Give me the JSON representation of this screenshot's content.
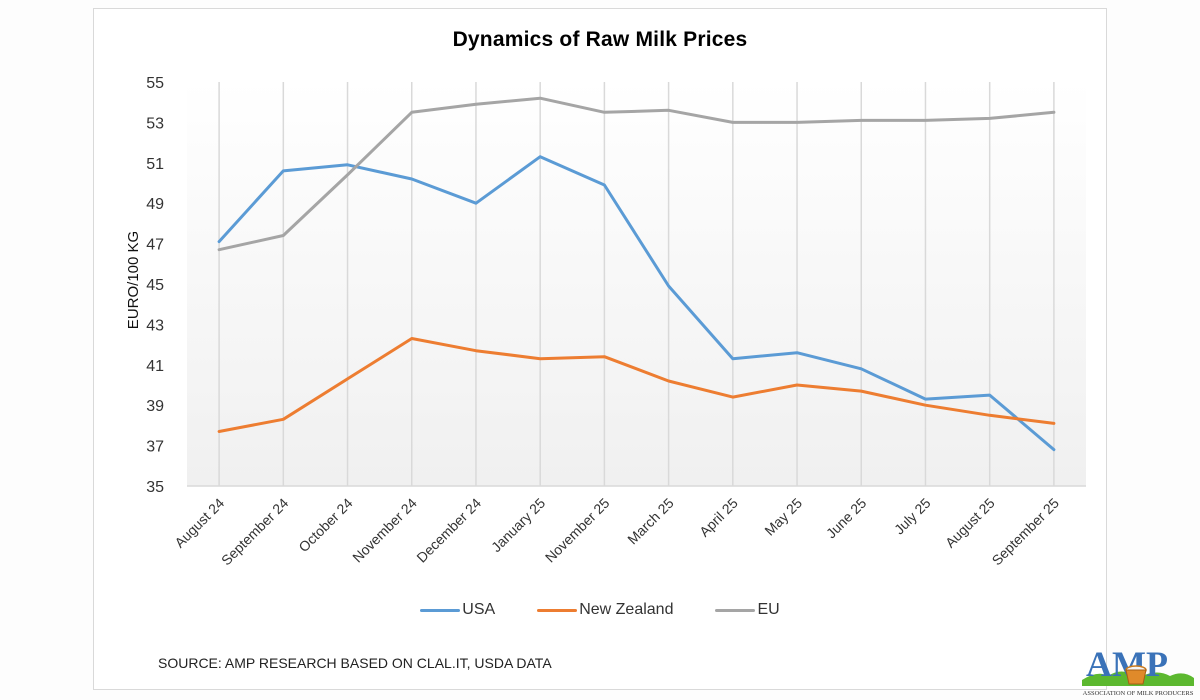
{
  "chart_data": {
    "type": "line",
    "title": "Dynamics of Raw Milk Prices",
    "xlabel": "",
    "ylabel": "EURO/100 KG",
    "ylim": [
      35,
      55
    ],
    "yticks": [
      35,
      37,
      39,
      41,
      43,
      45,
      47,
      49,
      51,
      53,
      55
    ],
    "grid": "vertical",
    "legend_position": "bottom",
    "categories": [
      "August 24",
      "September 24",
      "October 24",
      "November 24",
      "December 24",
      "January 25",
      "November 25",
      "March 25",
      "April 25",
      "May 25",
      "June 25",
      "July 25",
      "August 25",
      "September 25"
    ],
    "series": [
      {
        "name": "USA",
        "color": "#5b9bd5",
        "values": [
          47.1,
          50.6,
          50.9,
          50.2,
          49.0,
          51.3,
          49.9,
          44.9,
          41.3,
          41.6,
          40.8,
          39.3,
          39.5,
          36.8
        ]
      },
      {
        "name": "New Zealand",
        "color": "#ed7d31",
        "values": [
          37.7,
          38.3,
          40.3,
          42.3,
          41.7,
          41.3,
          41.4,
          40.2,
          39.4,
          40.0,
          39.7,
          39.0,
          38.5,
          38.1
        ]
      },
      {
        "name": "EU",
        "color": "#a5a5a5",
        "values": [
          46.7,
          47.4,
          50.4,
          53.5,
          53.9,
          54.2,
          53.5,
          53.6,
          53.0,
          53.0,
          53.1,
          53.1,
          53.2,
          53.5
        ]
      }
    ]
  },
  "footer": {
    "source": "SOURCE: AMP RESEARCH  BASED ON CLAL.IT, USDA DATA"
  },
  "logo": {
    "letters": "AMP",
    "tagline": "Association of milk producers"
  }
}
